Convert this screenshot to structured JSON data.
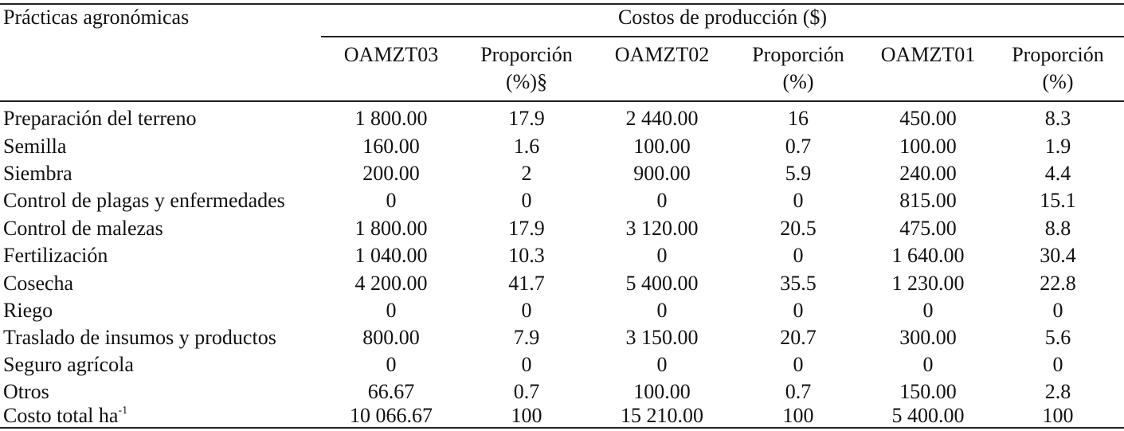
{
  "table": {
    "stub_header": "Prácticas agronómicas",
    "group_header": "Costos de producción ($)",
    "columns": [
      {
        "line1": "OAMZT03",
        "line2": ""
      },
      {
        "line1": "Proporción",
        "line2": "(%)§"
      },
      {
        "line1": "OAMZT02",
        "line2": ""
      },
      {
        "line1": "Proporción",
        "line2": "(%)"
      },
      {
        "line1": "OAMZT01",
        "line2": ""
      },
      {
        "line1": "Proporción",
        "line2": "(%)"
      }
    ],
    "rows": [
      {
        "label": "Preparación del terreno",
        "sup": "",
        "values": [
          "1 800.00",
          "17.9",
          "2 440.00",
          "16",
          "450.00",
          "8.3"
        ]
      },
      {
        "label": "Semilla",
        "sup": "",
        "values": [
          "160.00",
          "1.6",
          "100.00",
          "0.7",
          "100.00",
          "1.9"
        ]
      },
      {
        "label": "Siembra",
        "sup": "",
        "values": [
          "200.00",
          "2",
          "900.00",
          "5.9",
          "240.00",
          "4.4"
        ]
      },
      {
        "label": "Control de plagas y enfermedades",
        "sup": "",
        "values": [
          "0",
          "0",
          "0",
          "0",
          "815.00",
          "15.1"
        ]
      },
      {
        "label": "Control de malezas",
        "sup": "",
        "values": [
          "1 800.00",
          "17.9",
          "3 120.00",
          "20.5",
          "475.00",
          "8.8"
        ]
      },
      {
        "label": "Fertilización",
        "sup": "",
        "values": [
          "1 040.00",
          "10.3",
          "0",
          "0",
          "1 640.00",
          "30.4"
        ]
      },
      {
        "label": "Cosecha",
        "sup": "",
        "values": [
          "4 200.00",
          "41.7",
          "5 400.00",
          "35.5",
          "1 230.00",
          "22.8"
        ]
      },
      {
        "label": "Riego",
        "sup": "",
        "values": [
          "0",
          "0",
          "0",
          "0",
          "0",
          "0"
        ]
      },
      {
        "label": "Traslado de insumos y productos",
        "sup": "",
        "values": [
          "800.00",
          "7.9",
          "3 150.00",
          "20.7",
          "300.00",
          "5.6"
        ]
      },
      {
        "label": "Seguro agrícola",
        "sup": "",
        "values": [
          "0",
          "0",
          "0",
          "0",
          "0",
          "0"
        ]
      },
      {
        "label": "Otros",
        "sup": "",
        "values": [
          "66.67",
          "0.7",
          "100.00",
          "0.7",
          "150.00",
          "2.8"
        ]
      },
      {
        "label": "Costo total ha",
        "sup": "-1",
        "values": [
          "10 066.67",
          "100",
          "15 210.00",
          "100",
          "5 400.00",
          "100"
        ]
      }
    ]
  }
}
